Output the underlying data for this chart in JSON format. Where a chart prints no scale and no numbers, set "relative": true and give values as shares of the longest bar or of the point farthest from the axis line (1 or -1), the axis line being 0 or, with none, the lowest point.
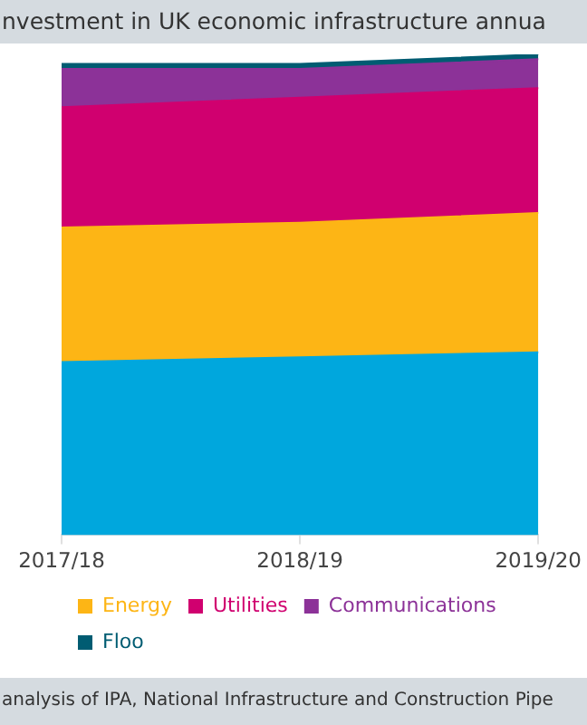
{
  "chart_data": {
    "type": "area",
    "title": "nvestment in UK economic infrastructure annua",
    "categories": [
      "2017/18",
      "2018/19",
      "2019/20"
    ],
    "relative": true,
    "stacked": true,
    "legend": "bottom",
    "grid": false,
    "series": [
      {
        "color": "#00a7dd",
        "values": [
          0.36,
          0.37,
          0.38
        ]
      },
      {
        "name": "Energy",
        "color": "#fdb515",
        "values": [
          0.28,
          0.28,
          0.29
        ]
      },
      {
        "name": "Utilities",
        "color": "#d0006f",
        "values": [
          0.25,
          0.26,
          0.26
        ]
      },
      {
        "name": "Communications",
        "color": "#8c3298",
        "values": [
          0.08,
          0.06,
          0.06
        ]
      },
      {
        "name": "Floo",
        "color": "#005c72",
        "values": [
          0.01,
          0.01,
          0.01
        ]
      }
    ],
    "annotations": [
      "analysis of IPA, National Infrastructure and Construction Pipe"
    ]
  }
}
